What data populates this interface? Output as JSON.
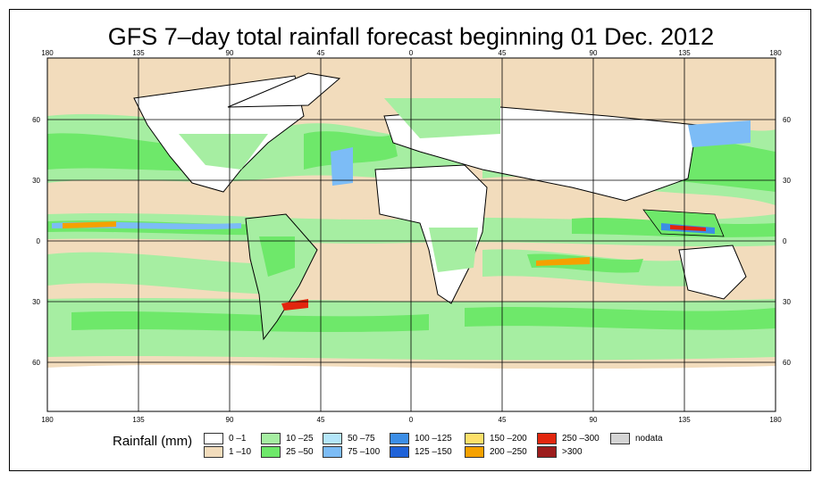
{
  "title": "GFS 7–day total rainfall forecast beginning 01 Dec. 2012",
  "map": {
    "lon_ticks": [
      "180",
      "135",
      "90",
      "45",
      "0",
      "45",
      "90",
      "135",
      "180"
    ],
    "lat_ticks_left": [
      "60",
      "30",
      "0",
      "30",
      "60"
    ],
    "lat_ticks_right": [
      "60",
      "30",
      "0",
      "30",
      "60"
    ]
  },
  "legend": {
    "title": "Rainfall (mm)",
    "items": [
      {
        "label": "0 –1",
        "color": "#ffffff"
      },
      {
        "label": "1 –10",
        "color": "#f2dcbc"
      },
      {
        "label": "10 –25",
        "color": "#a6eea2"
      },
      {
        "label": "25 –50",
        "color": "#6ee86a"
      },
      {
        "label": "50 –75",
        "color": "#b4e6fa"
      },
      {
        "label": "75 –100",
        "color": "#7cbcf6"
      },
      {
        "label": "100 –125",
        "color": "#3c8ee6"
      },
      {
        "label": "125 –150",
        "color": "#1f62d8"
      },
      {
        "label": "150 –200",
        "color": "#fde06a"
      },
      {
        "label": "200 –250",
        "color": "#f5a100"
      },
      {
        "label": "250 –300",
        "color": "#e2260e"
      },
      {
        "label": ">300",
        "color": "#9c1c1c"
      },
      {
        "label": "nodata",
        "color": "#d4d4d4"
      }
    ]
  },
  "colors": {
    "ocean_bg": "#f2dcbc",
    "green_light": "#a6eea2",
    "green": "#6ee86a",
    "land": "#ffffff",
    "ice": "#ffffff",
    "blue": "#3c8ee6",
    "orange": "#f5a100",
    "red": "#e2260e"
  }
}
